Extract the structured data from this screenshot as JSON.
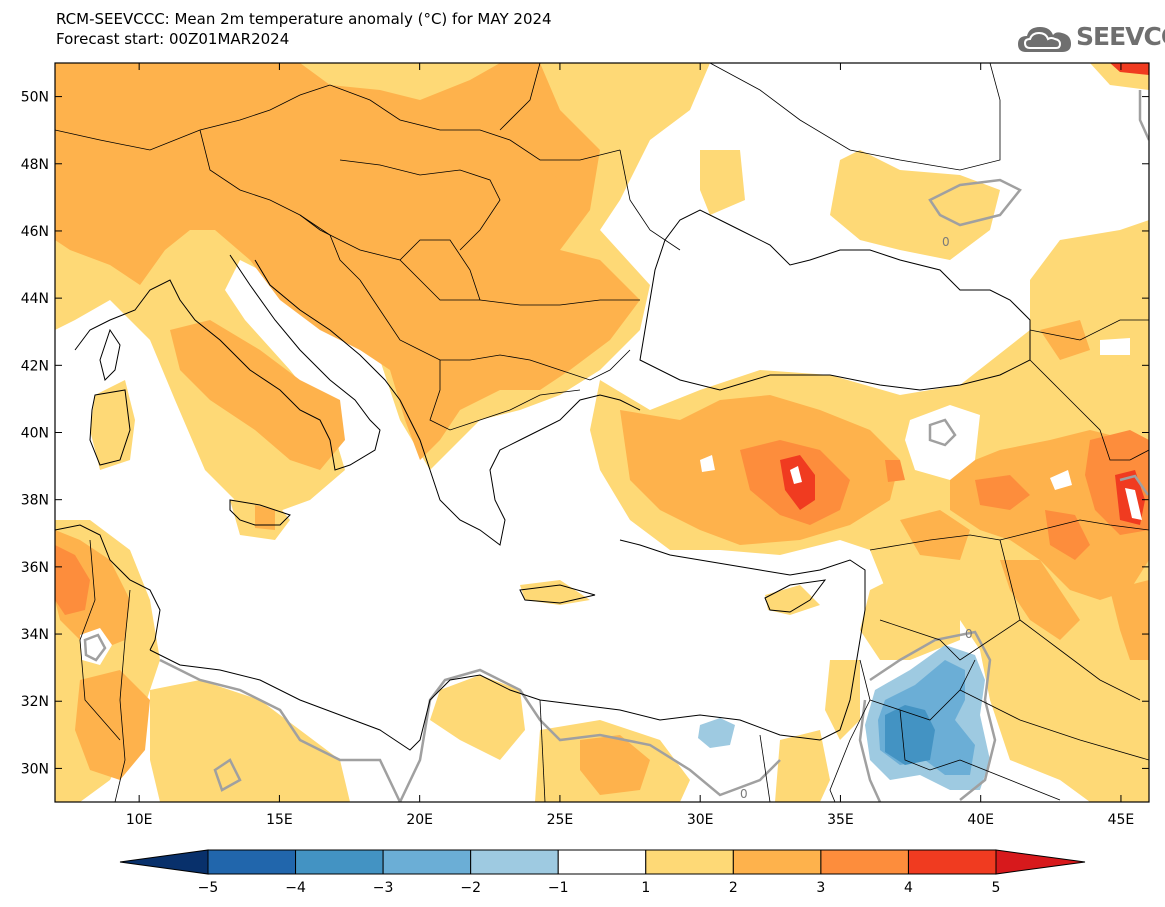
{
  "header": {
    "title_line1": "RCM-SEEVCCC: Mean 2m temperature anomaly (°C) for MAY 2024",
    "title_line2": "Forecast start: 00Z01MAR2024"
  },
  "logo": {
    "text": "SEEVCCC",
    "icon": "cloud-icon"
  },
  "map": {
    "projection": "lat-lon",
    "lon_range": [
      7,
      46
    ],
    "lat_range": [
      29,
      51
    ],
    "lon_ticks": [
      "10E",
      "15E",
      "20E",
      "25E",
      "30E",
      "35E",
      "40E",
      "45E"
    ],
    "lat_ticks": [
      "30N",
      "32N",
      "34N",
      "36N",
      "38N",
      "40N",
      "42N",
      "44N",
      "46N",
      "48N",
      "50N"
    ],
    "contour_labels": [
      "0",
      "0",
      "0"
    ]
  },
  "colorbar": {
    "tick_labels": [
      "-5",
      "-4",
      "-3",
      "-2",
      "-1",
      "1",
      "2",
      "3",
      "4",
      "5"
    ],
    "colors": [
      "#08306b",
      "#2166ac",
      "#4393c3",
      "#6baed6",
      "#9ecae1",
      "#ffffff",
      "#fed976",
      "#feb24c",
      "#fd8d3c",
      "#f03b20",
      "#d7191c"
    ]
  },
  "palette": {
    "ocean": "#ffffff",
    "anom_1_2": "#fed976",
    "anom_2_3": "#feb24c",
    "anom_3_4": "#fd8d3c",
    "anom_4_5": "#f03b20",
    "anom_m2_m1": "#9ecae1",
    "anom_m3_m2": "#6baed6",
    "anom_m4_m3": "#4393c3",
    "zero_contour": "#a0a0a0"
  }
}
